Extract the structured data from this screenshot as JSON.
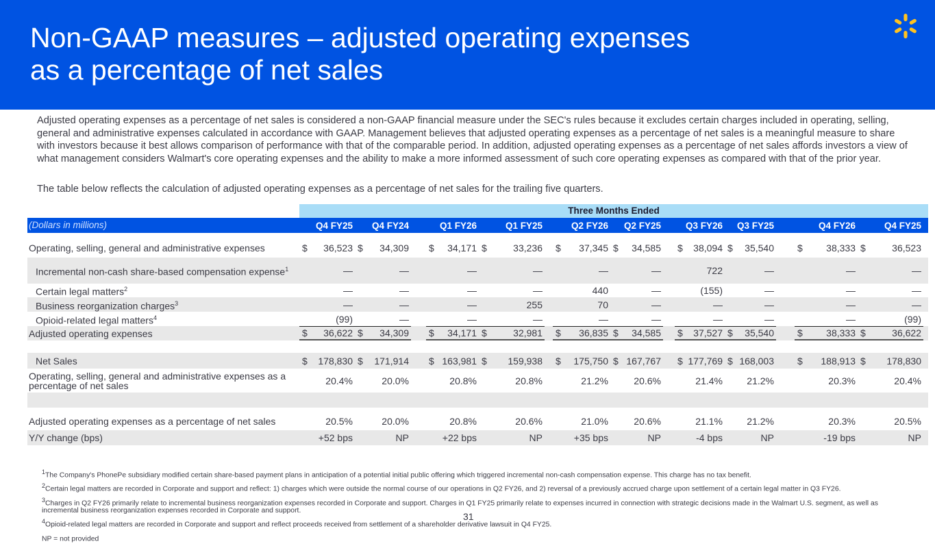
{
  "header": {
    "title": "Non-GAAP measures – adjusted operating expenses as a percentage of net sales",
    "logo": "walmart-spark-logo",
    "brand_color": "#0053e2",
    "logo_color": "#ffc220"
  },
  "intro": [
    "Adjusted operating expenses as a percentage of net sales is considered a non-GAAP financial measure under the SEC's rules because it excludes certain charges included in operating, selling, general and administrative expenses calculated in accordance with GAAP. Management believes that adjusted operating expenses as a percentage of net sales is a meaningful measure to share with investors because it best allows comparison of performance with that of the comparable period. In addition, adjusted operating expenses as a percentage of net sales affords investors a view of what management considers Walmart's core operating expenses and the ability to make a more informed assessment of such core operating expenses as compared with that of the prior year.",
    "The table below reflects the calculation of adjusted operating expenses as a percentage of net sales for the trailing five quarters."
  ],
  "table": {
    "period_header": "Three Months Ended",
    "units_label": "(Dollars in millions)",
    "columns": [
      "Q4 FY25",
      "Q4 FY24",
      "Q1 FY26",
      "Q1 FY25",
      "Q2 FY26",
      "Q2 FY25",
      "Q3 FY26",
      "Q3 FY25",
      "Q4 FY26",
      "Q4 FY25"
    ],
    "rows": [
      {
        "label": "Operating, selling, general and administrative expenses",
        "dollar": true,
        "values": [
          "36,523",
          "34,309",
          "34,171",
          "33,236",
          "37,345",
          "34,585",
          "38,094",
          "35,540",
          "38,333",
          "36,523"
        ]
      },
      {
        "label": "Incremental non-cash share-based compensation expense",
        "sup": "1",
        "indent": true,
        "gray": true,
        "values": [
          "—",
          "—",
          "—",
          "—",
          "—",
          "—",
          "722",
          "—",
          "—",
          "—"
        ]
      },
      {
        "label": "Certain legal matters",
        "sup": "2",
        "indent": true,
        "values": [
          "—",
          "—",
          "—",
          "—",
          "440",
          "—",
          "(155)",
          "—",
          "—",
          "—"
        ]
      },
      {
        "label": "Business reorganization charges",
        "sup": "3",
        "indent": true,
        "gray": true,
        "values": [
          "—",
          "—",
          "—",
          "255",
          "70",
          "—",
          "—",
          "—",
          "—",
          "—"
        ]
      },
      {
        "label": "Opioid-related legal matters",
        "sup": "4",
        "indent": true,
        "values": [
          "(99)",
          "—",
          "—",
          "—",
          "—",
          "—",
          "—",
          "—",
          "—",
          "(99)"
        ]
      },
      {
        "label": "Adjusted operating expenses",
        "dollar": true,
        "gray": true,
        "total": true,
        "values": [
          "36,622",
          "34,309",
          "34,171",
          "32,981",
          "36,835",
          "34,585",
          "37,527",
          "35,540",
          "38,333",
          "36,622"
        ]
      },
      {
        "label": "Net Sales",
        "indent": true,
        "dollar": true,
        "gray": true,
        "values": [
          "178,830",
          "171,914",
          "163,981",
          "159,938",
          "175,750",
          "167,767",
          "177,769",
          "168,003",
          "188,913",
          "178,830"
        ]
      },
      {
        "label": "Operating, selling, general and administrative expenses as a percentage of net sales",
        "values": [
          "20.4%",
          "20.0%",
          "20.8%",
          "20.8%",
          "21.2%",
          "20.6%",
          "21.4%",
          "21.2%",
          "20.3%",
          "20.4%"
        ]
      },
      {
        "label": "Adjusted operating expenses as a percentage of net sales",
        "values": [
          "20.5%",
          "20.0%",
          "20.8%",
          "20.6%",
          "21.0%",
          "20.6%",
          "21.1%",
          "21.2%",
          "20.3%",
          "20.5%"
        ]
      },
      {
        "label": "Y/Y change (bps)",
        "gray": true,
        "values": [
          "+52 bps",
          "NP",
          "+22 bps",
          "NP",
          "+35 bps",
          "NP",
          "-4 bps",
          "NP",
          "-19 bps",
          "NP"
        ]
      }
    ]
  },
  "footnotes": [
    {
      "sup": "1",
      "text": "The Company's PhonePe subsidiary modified certain share-based payment plans in anticipation of a potential initial public offering which triggered incremental non-cash compensation expense. This charge has no tax benefit."
    },
    {
      "sup": "2",
      "text": "Certain legal matters are recorded in Corporate and support and reflect: 1) charges which were outside the normal course of our operations in Q2 FY26, and 2) reversal of a previously accrued charge upon settlement of a certain legal matter in Q3 FY26."
    },
    {
      "sup": "3",
      "text": "Charges in Q2 FY26 primarily relate to incremental business reorganization expenses recorded in Corporate and support. Charges in Q1 FY25 primarily relate to expenses incurred in connection with strategic decisions made in the Walmart U.S. segment, as well as incremental business reorganization expenses recorded in Corporate and support."
    },
    {
      "sup": "4",
      "text": "Opioid-related legal matters are recorded in Corporate and support and reflect proceeds received from settlement of a shareholder derivative lawsuit in Q4 FY25."
    },
    {
      "sup": "",
      "text": "NP = not provided"
    }
  ],
  "page_number": "31"
}
